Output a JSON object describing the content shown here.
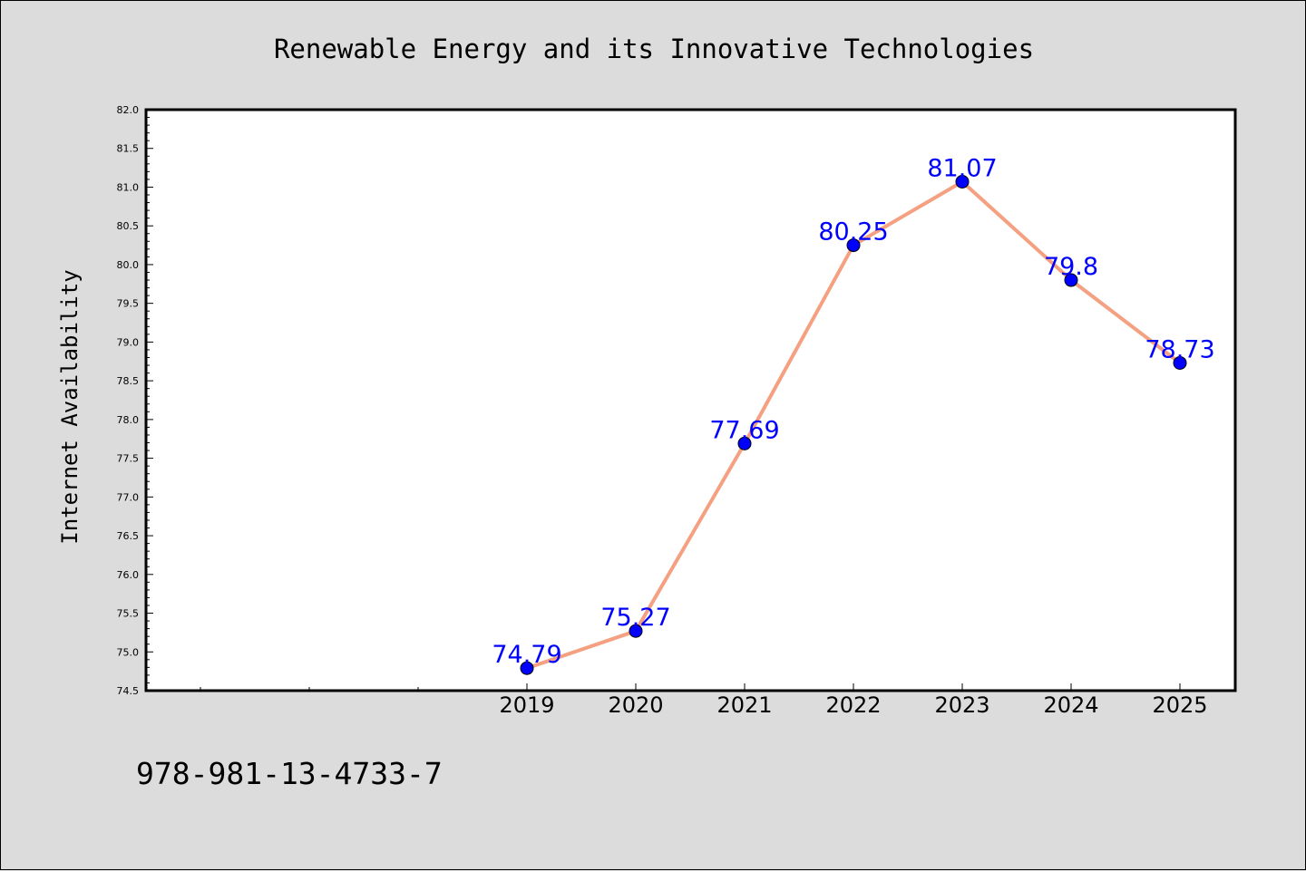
{
  "chart_data": {
    "type": "line",
    "title": "Renewable Energy and its Innovative Technologies",
    "xlabel": "",
    "ylabel": "Internet Availability",
    "categories": [
      "2019",
      "2020",
      "2021",
      "2022",
      "2023",
      "2024",
      "2025"
    ],
    "series": [
      {
        "values": [
          74.79,
          75.27,
          77.69,
          80.25,
          81.07,
          79.8,
          78.73
        ],
        "data_labels": [
          "74.79",
          "75.27",
          "77.69",
          "80.25",
          "81.07",
          "79.8",
          "78.73"
        ]
      }
    ],
    "ylim": [
      74.5,
      82.0
    ],
    "yticks": [
      "74.5",
      "75.0",
      "75.5",
      "76.0",
      "76.5",
      "77.0",
      "77.5",
      "78.0",
      "78.5",
      "79.0",
      "79.5",
      "80.0",
      "80.5",
      "81.0",
      "81.5",
      "82.0"
    ],
    "grid": false,
    "legend": "none",
    "colors": {
      "line": "#f4a081",
      "marker": "#0000ff",
      "data_label": "#0000ff",
      "background": "#dcdcdc",
      "plot_background": "#ffffff"
    }
  },
  "footnote": "978-981-13-4733-7"
}
